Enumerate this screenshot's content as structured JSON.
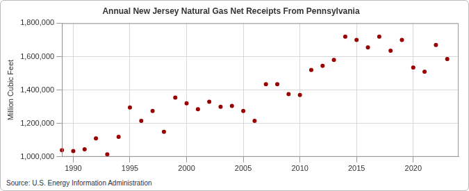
{
  "chart_data": {
    "type": "scatter",
    "title": "Annual New Jersey Natural Gas Net Receipts From Pennsylvania",
    "y_label": "Million Cubic Feet",
    "source": "Source: U.S. Energy Information Administration",
    "x": [
      1989,
      1990,
      1991,
      1992,
      1993,
      1994,
      1995,
      1996,
      1997,
      1998,
      1999,
      2000,
      2001,
      2002,
      2003,
      2004,
      2005,
      2006,
      2007,
      2008,
      2009,
      2010,
      2011,
      2012,
      2013,
      2014,
      2015,
      2016,
      2017,
      2018,
      2019,
      2020,
      2021,
      2022,
      2023
    ],
    "values": [
      1040000,
      1035000,
      1045000,
      1110000,
      1015000,
      1120000,
      1295000,
      1215000,
      1275000,
      1150000,
      1355000,
      1320000,
      1285000,
      1330000,
      1300000,
      1305000,
      1275000,
      1215000,
      1435000,
      1435000,
      1375000,
      1370000,
      1520000,
      1545000,
      1580000,
      1720000,
      1700000,
      1655000,
      1720000,
      1635000,
      1700000,
      1535000,
      1510000,
      1670000,
      1585000
    ],
    "color": "#990000",
    "marker": "circle",
    "xlim": [
      1989,
      2024
    ],
    "xticks": [
      1990,
      1995,
      2000,
      2005,
      2010,
      2015,
      2020
    ],
    "ylim": [
      1000000,
      1800000
    ],
    "yticks": [
      {
        "value": 1000000,
        "label": "1,000,000"
      },
      {
        "value": 1200000,
        "label": "1,200,000"
      },
      {
        "value": 1400000,
        "label": "1,400,000"
      },
      {
        "value": 1600000,
        "label": "1,600,000"
      },
      {
        "value": 1800000,
        "label": "1,800,000"
      }
    ],
    "grid": true
  }
}
